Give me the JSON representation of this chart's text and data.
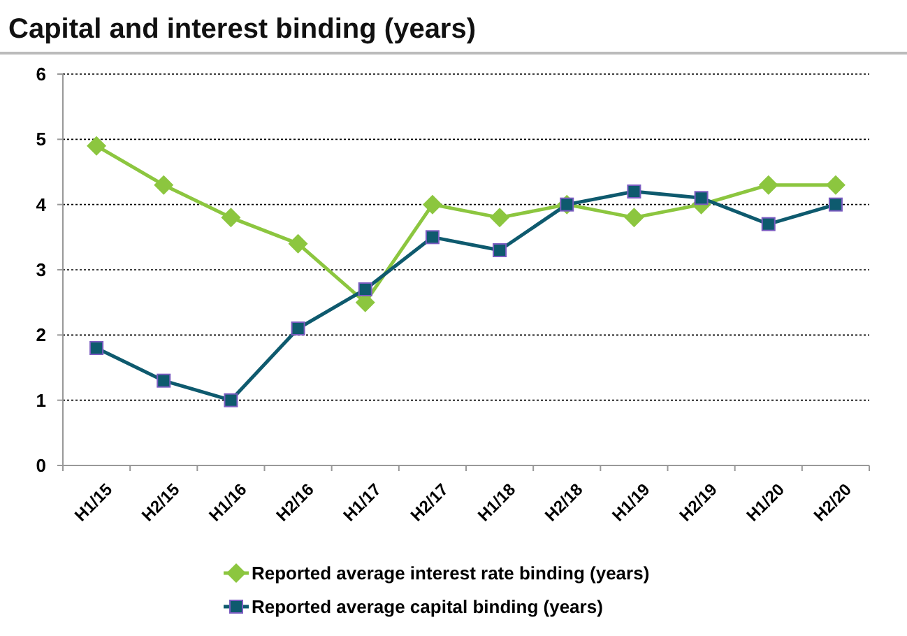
{
  "chart_data": {
    "type": "line",
    "title": "Capital and interest binding (years)",
    "categories": [
      "H1/15",
      "H2/15",
      "H1/16",
      "H2/16",
      "H1/17",
      "H2/17",
      "H1/18",
      "H2/18",
      "H1/19",
      "H2/19",
      "H1/20",
      "H2/20"
    ],
    "series": [
      {
        "name": "Reported average interest rate binding (years)",
        "color": "#8cc63f",
        "marker": "diamond",
        "values": [
          4.9,
          4.3,
          3.8,
          3.4,
          2.5,
          4.0,
          3.8,
          4.0,
          3.8,
          4.0,
          4.3,
          4.3
        ]
      },
      {
        "name": "Reported average capital binding (years)",
        "color": "#0e5a6e",
        "marker": "square",
        "values": [
          1.8,
          1.3,
          1.0,
          2.1,
          2.7,
          3.5,
          3.3,
          4.0,
          4.2,
          4.1,
          3.7,
          4.0
        ]
      }
    ],
    "ylim": [
      0,
      6
    ],
    "yticks": [
      0,
      1,
      2,
      3,
      4,
      5,
      6
    ],
    "grid": "y",
    "legend": "bottom"
  }
}
